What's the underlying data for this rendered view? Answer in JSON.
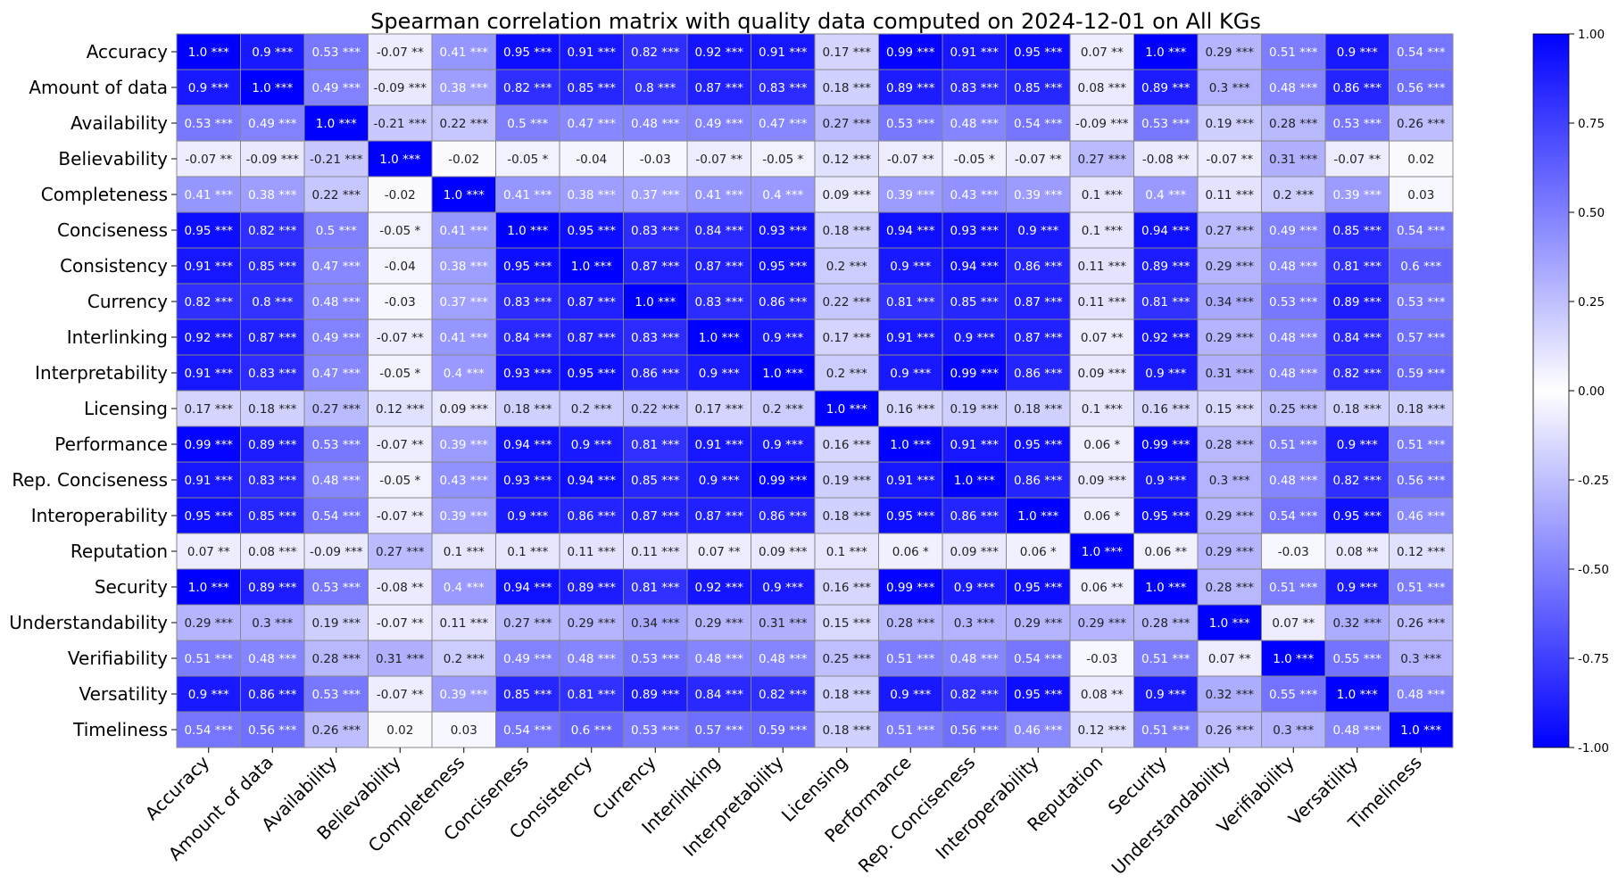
{
  "chart_data": {
    "type": "heatmap",
    "title": "Spearman correlation matrix with quality data computed on 2024-12-01 on All KGs",
    "labels": [
      "Accuracy",
      "Amount of data",
      "Availability",
      "Believability",
      "Completeness",
      "Conciseness",
      "Consistency",
      "Currency",
      "Interlinking",
      "Interpretability",
      "Licensing",
      "Performance",
      "Rep. Conciseness",
      "Interoperability",
      "Reputation",
      "Security",
      "Understandability",
      "Verifiability",
      "Versatility",
      "Timeliness"
    ],
    "cells": [
      [
        "1.0 ***",
        "0.9 ***",
        "0.53 ***",
        "-0.07 **",
        "0.41 ***",
        "0.95 ***",
        "0.91 ***",
        "0.82 ***",
        "0.92 ***",
        "0.91 ***",
        "0.17 ***",
        "0.99 ***",
        "0.91 ***",
        "0.95 ***",
        "0.07 **",
        "1.0 ***",
        "0.29 ***",
        "0.51 ***",
        "0.9 ***",
        "0.54 ***"
      ],
      [
        "0.9 ***",
        "1.0 ***",
        "0.49 ***",
        "-0.09 ***",
        "0.38 ***",
        "0.82 ***",
        "0.85 ***",
        "0.8 ***",
        "0.87 ***",
        "0.83 ***",
        "0.18 ***",
        "0.89 ***",
        "0.83 ***",
        "0.85 ***",
        "0.08 ***",
        "0.89 ***",
        "0.3 ***",
        "0.48 ***",
        "0.86 ***",
        "0.56 ***"
      ],
      [
        "0.53 ***",
        "0.49 ***",
        "1.0 ***",
        "-0.21 ***",
        "0.22 ***",
        "0.5 ***",
        "0.47 ***",
        "0.48 ***",
        "0.49 ***",
        "0.47 ***",
        "0.27 ***",
        "0.53 ***",
        "0.48 ***",
        "0.54 ***",
        "-0.09 ***",
        "0.53 ***",
        "0.19 ***",
        "0.28 ***",
        "0.53 ***",
        "0.26 ***"
      ],
      [
        "-0.07 **",
        "-0.09 ***",
        "-0.21 ***",
        "1.0 ***",
        "-0.02",
        "-0.05 *",
        "-0.04",
        "-0.03",
        "-0.07 **",
        "-0.05 *",
        "0.12 ***",
        "-0.07 **",
        "-0.05 *",
        "-0.07 **",
        "0.27 ***",
        "-0.08 **",
        "-0.07 **",
        "0.31 ***",
        "-0.07 **",
        "0.02"
      ],
      [
        "0.41 ***",
        "0.38 ***",
        "0.22 ***",
        "-0.02",
        "1.0 ***",
        "0.41 ***",
        "0.38 ***",
        "0.37 ***",
        "0.41 ***",
        "0.4 ***",
        "0.09 ***",
        "0.39 ***",
        "0.43 ***",
        "0.39 ***",
        "0.1 ***",
        "0.4 ***",
        "0.11 ***",
        "0.2 ***",
        "0.39 ***",
        "0.03"
      ],
      [
        "0.95 ***",
        "0.82 ***",
        "0.5 ***",
        "-0.05 *",
        "0.41 ***",
        "1.0 ***",
        "0.95 ***",
        "0.83 ***",
        "0.84 ***",
        "0.93 ***",
        "0.18 ***",
        "0.94 ***",
        "0.93 ***",
        "0.9 ***",
        "0.1 ***",
        "0.94 ***",
        "0.27 ***",
        "0.49 ***",
        "0.85 ***",
        "0.54 ***"
      ],
      [
        "0.91 ***",
        "0.85 ***",
        "0.47 ***",
        "-0.04",
        "0.38 ***",
        "0.95 ***",
        "1.0 ***",
        "0.87 ***",
        "0.87 ***",
        "0.95 ***",
        "0.2 ***",
        "0.9 ***",
        "0.94 ***",
        "0.86 ***",
        "0.11 ***",
        "0.89 ***",
        "0.29 ***",
        "0.48 ***",
        "0.81 ***",
        "0.6 ***"
      ],
      [
        "0.82 ***",
        "0.8 ***",
        "0.48 ***",
        "-0.03",
        "0.37 ***",
        "0.83 ***",
        "0.87 ***",
        "1.0 ***",
        "0.83 ***",
        "0.86 ***",
        "0.22 ***",
        "0.81 ***",
        "0.85 ***",
        "0.87 ***",
        "0.11 ***",
        "0.81 ***",
        "0.34 ***",
        "0.53 ***",
        "0.89 ***",
        "0.53 ***"
      ],
      [
        "0.92 ***",
        "0.87 ***",
        "0.49 ***",
        "-0.07 **",
        "0.41 ***",
        "0.84 ***",
        "0.87 ***",
        "0.83 ***",
        "1.0 ***",
        "0.9 ***",
        "0.17 ***",
        "0.91 ***",
        "0.9 ***",
        "0.87 ***",
        "0.07 **",
        "0.92 ***",
        "0.29 ***",
        "0.48 ***",
        "0.84 ***",
        "0.57 ***"
      ],
      [
        "0.91 ***",
        "0.83 ***",
        "0.47 ***",
        "-0.05 *",
        "0.4 ***",
        "0.93 ***",
        "0.95 ***",
        "0.86 ***",
        "0.9 ***",
        "1.0 ***",
        "0.2 ***",
        "0.9 ***",
        "0.99 ***",
        "0.86 ***",
        "0.09 ***",
        "0.9 ***",
        "0.31 ***",
        "0.48 ***",
        "0.82 ***",
        "0.59 ***"
      ],
      [
        "0.17 ***",
        "0.18 ***",
        "0.27 ***",
        "0.12 ***",
        "0.09 ***",
        "0.18 ***",
        "0.2 ***",
        "0.22 ***",
        "0.17 ***",
        "0.2 ***",
        "1.0 ***",
        "0.16 ***",
        "0.19 ***",
        "0.18 ***",
        "0.1 ***",
        "0.16 ***",
        "0.15 ***",
        "0.25 ***",
        "0.18 ***",
        "0.18 ***"
      ],
      [
        "0.99 ***",
        "0.89 ***",
        "0.53 ***",
        "-0.07 **",
        "0.39 ***",
        "0.94 ***",
        "0.9 ***",
        "0.81 ***",
        "0.91 ***",
        "0.9 ***",
        "0.16 ***",
        "1.0 ***",
        "0.91 ***",
        "0.95 ***",
        "0.06 *",
        "0.99 ***",
        "0.28 ***",
        "0.51 ***",
        "0.9 ***",
        "0.51 ***"
      ],
      [
        "0.91 ***",
        "0.83 ***",
        "0.48 ***",
        "-0.05 *",
        "0.43 ***",
        "0.93 ***",
        "0.94 ***",
        "0.85 ***",
        "0.9 ***",
        "0.99 ***",
        "0.19 ***",
        "0.91 ***",
        "1.0 ***",
        "0.86 ***",
        "0.09 ***",
        "0.9 ***",
        "0.3 ***",
        "0.48 ***",
        "0.82 ***",
        "0.56 ***"
      ],
      [
        "0.95 ***",
        "0.85 ***",
        "0.54 ***",
        "-0.07 **",
        "0.39 ***",
        "0.9 ***",
        "0.86 ***",
        "0.87 ***",
        "0.87 ***",
        "0.86 ***",
        "0.18 ***",
        "0.95 ***",
        "0.86 ***",
        "1.0 ***",
        "0.06 *",
        "0.95 ***",
        "0.29 ***",
        "0.54 ***",
        "0.95 ***",
        "0.46 ***"
      ],
      [
        "0.07 **",
        "0.08 ***",
        "-0.09 ***",
        "0.27 ***",
        "0.1 ***",
        "0.1 ***",
        "0.11 ***",
        "0.11 ***",
        "0.07 **",
        "0.09 ***",
        "0.1 ***",
        "0.06 *",
        "0.09 ***",
        "0.06 *",
        "1.0 ***",
        "0.06 **",
        "0.29 ***",
        "-0.03",
        "0.08 **",
        "0.12 ***"
      ],
      [
        "1.0 ***",
        "0.89 ***",
        "0.53 ***",
        "-0.08 **",
        "0.4 ***",
        "0.94 ***",
        "0.89 ***",
        "0.81 ***",
        "0.92 ***",
        "0.9 ***",
        "0.16 ***",
        "0.99 ***",
        "0.9 ***",
        "0.95 ***",
        "0.06 **",
        "1.0 ***",
        "0.28 ***",
        "0.51 ***",
        "0.9 ***",
        "0.51 ***"
      ],
      [
        "0.29 ***",
        "0.3 ***",
        "0.19 ***",
        "-0.07 **",
        "0.11 ***",
        "0.27 ***",
        "0.29 ***",
        "0.34 ***",
        "0.29 ***",
        "0.31 ***",
        "0.15 ***",
        "0.28 ***",
        "0.3 ***",
        "0.29 ***",
        "0.29 ***",
        "0.28 ***",
        "1.0 ***",
        "0.07 **",
        "0.32 ***",
        "0.26 ***"
      ],
      [
        "0.51 ***",
        "0.48 ***",
        "0.28 ***",
        "0.31 ***",
        "0.2 ***",
        "0.49 ***",
        "0.48 ***",
        "0.53 ***",
        "0.48 ***",
        "0.48 ***",
        "0.25 ***",
        "0.51 ***",
        "0.48 ***",
        "0.54 ***",
        "-0.03",
        "0.51 ***",
        "0.07 **",
        "1.0 ***",
        "0.55 ***",
        "0.3 ***"
      ],
      [
        "0.9 ***",
        "0.86 ***",
        "0.53 ***",
        "-0.07 **",
        "0.39 ***",
        "0.85 ***",
        "0.81 ***",
        "0.89 ***",
        "0.84 ***",
        "0.82 ***",
        "0.18 ***",
        "0.9 ***",
        "0.82 ***",
        "0.95 ***",
        "0.08 **",
        "0.9 ***",
        "0.32 ***",
        "0.55 ***",
        "1.0 ***",
        "0.48 ***"
      ],
      [
        "0.54 ***",
        "0.56 ***",
        "0.26 ***",
        "0.02",
        "0.03",
        "0.54 ***",
        "0.6 ***",
        "0.53 ***",
        "0.57 ***",
        "0.59 ***",
        "0.18 ***",
        "0.51 ***",
        "0.56 ***",
        "0.46 ***",
        "0.12 ***",
        "0.51 ***",
        "0.26 ***",
        "0.3 ***",
        "0.48 ***",
        "1.0 ***"
      ]
    ],
    "colorbar": {
      "range": [
        -1.0,
        1.0
      ],
      "ticks": [
        "1.00",
        "0.75",
        "0.50",
        "0.25",
        "0.00",
        "-0.25",
        "-0.50",
        "-0.75",
        "-1.00"
      ],
      "colors": [
        "#0000ff",
        "#ffffff",
        "#0000ff"
      ]
    },
    "grid": true
  }
}
